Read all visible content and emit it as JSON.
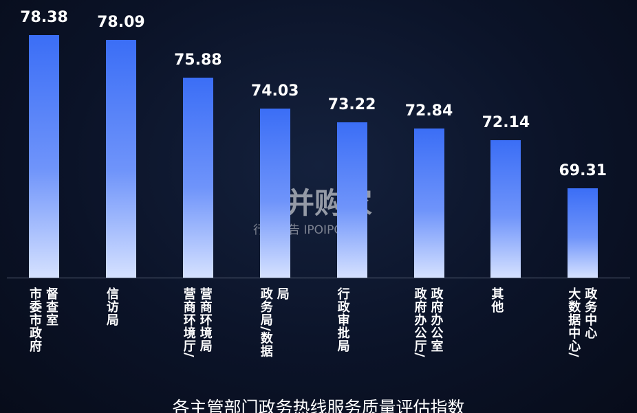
{
  "chart_data": {
    "type": "bar",
    "title": "各主管部门政务热线服务质量评估指数",
    "categories": [
      "市委市政府督查室",
      "信访局",
      "营商环境厅/营商环境局",
      "政务局/数据局",
      "行政审批局",
      "政府办公厅/政府办公室",
      "其他",
      "大数据中心/政务中心"
    ],
    "values": [
      78.38,
      78.09,
      75.88,
      74.03,
      73.22,
      72.84,
      72.14,
      69.31
    ],
    "color": "#3b6ef6",
    "ylim": [
      64,
      79
    ],
    "watermark": {
      "brand": "并购家",
      "tagline": "行业报告 IPOIPO.CN"
    }
  }
}
